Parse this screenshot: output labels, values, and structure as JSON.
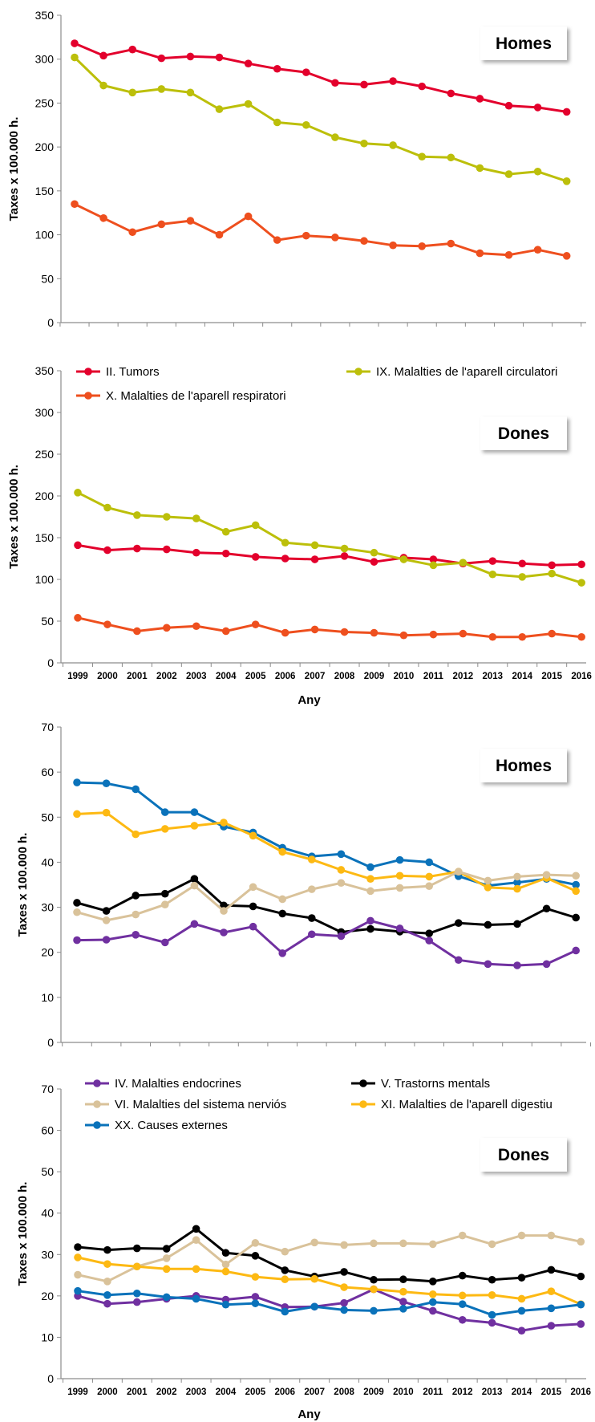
{
  "chart_data": [
    {
      "type": "line",
      "title": "Homes",
      "ylabel": "Taxes x 100.000 h.",
      "xlabel": "",
      "ylim": [
        0,
        350
      ],
      "ytick_step": 50,
      "grid": false,
      "show_legend": false,
      "show_x_tick_labels": false,
      "x": [
        "1999",
        "2000",
        "2001",
        "2002",
        "2003",
        "2004",
        "2005",
        "2006",
        "2007",
        "2008",
        "2009",
        "2010",
        "2011",
        "2012",
        "2013",
        "2014",
        "2015",
        "2016"
      ],
      "series": [
        {
          "name": "II. Tumors",
          "color": "#e3002c",
          "values": [
            318,
            304,
            311,
            301,
            303,
            302,
            295,
            289,
            285,
            273,
            271,
            275,
            269,
            261,
            255,
            247,
            245,
            240
          ]
        },
        {
          "name": "IX. Malalties de l'aparell circulatori",
          "color": "#bcbf0a",
          "values": [
            302,
            270,
            262,
            266,
            262,
            243,
            249,
            228,
            225,
            211,
            204,
            202,
            189,
            188,
            176,
            169,
            172,
            161
          ]
        },
        {
          "name": "X.  Malalties de l'aparell respiratori",
          "color": "#ee4f1e",
          "values": [
            135,
            119,
            103,
            112,
            116,
            100,
            121,
            94,
            99,
            97,
            93,
            88,
            87,
            90,
            79,
            77,
            83,
            76
          ]
        }
      ]
    },
    {
      "type": "line",
      "title": "Dones",
      "ylabel": "Taxes x 100.000 h.",
      "xlabel": "Any",
      "ylim": [
        0,
        350
      ],
      "ytick_step": 50,
      "grid": false,
      "show_legend": true,
      "legend_position": "top",
      "show_x_tick_labels": true,
      "x": [
        "1999",
        "2000",
        "2001",
        "2002",
        "2003",
        "2004",
        "2005",
        "2006",
        "2007",
        "2008",
        "2009",
        "2010",
        "2011",
        "2012",
        "2013",
        "2014",
        "2015",
        "2016"
      ],
      "series": [
        {
          "name": "II. Tumors",
          "color": "#e3002c",
          "values": [
            141,
            135,
            137,
            136,
            132,
            131,
            127,
            125,
            124,
            128,
            121,
            126,
            124,
            119,
            122,
            119,
            117,
            118
          ]
        },
        {
          "name": "IX. Malalties de l'aparell circulatori",
          "color": "#bcbf0a",
          "values": [
            204,
            186,
            177,
            175,
            173,
            157,
            165,
            144,
            141,
            137,
            132,
            124,
            117,
            120,
            106,
            103,
            107,
            96
          ]
        },
        {
          "name": "X.  Malalties de l'aparell respiratori",
          "color": "#ee4f1e",
          "values": [
            54,
            46,
            38,
            42,
            44,
            38,
            46,
            36,
            40,
            37,
            36,
            33,
            34,
            35,
            31,
            31,
            35,
            31
          ]
        }
      ]
    },
    {
      "type": "line",
      "title": "Homes",
      "ylabel": "Taxes x 100.000 h.",
      "xlabel": "",
      "ylim": [
        0,
        70
      ],
      "ytick_step": 10,
      "grid": false,
      "show_legend": false,
      "show_x_tick_labels": false,
      "x": [
        "1999",
        "2000",
        "2001",
        "2002",
        "2003",
        "2004",
        "2005",
        "2006",
        "2007",
        "2008",
        "2009",
        "2010",
        "2011",
        "2012",
        "2013",
        "2014",
        "2015",
        "2016"
      ],
      "series": [
        {
          "name": "XX. Causes externes",
          "color": "#0a72ba",
          "values": [
            57.7,
            57.5,
            56.2,
            51.1,
            51.1,
            47.9,
            46.6,
            43.2,
            41.3,
            41.8,
            38.9,
            40.5,
            40.0,
            36.9,
            34.8,
            35.5,
            36.3,
            35.0
          ]
        },
        {
          "name": "XI. Malalties de l'aparell digestiu",
          "color": "#fdb913",
          "values": [
            50.7,
            51.0,
            46.2,
            47.4,
            48.1,
            48.8,
            45.9,
            42.3,
            40.6,
            38.3,
            36.3,
            37.0,
            36.8,
            37.9,
            34.4,
            34.1,
            36.5,
            33.6
          ]
        },
        {
          "name": "V. Trastorns mentals",
          "color": "#000000",
          "values": [
            31.0,
            29.2,
            32.6,
            33.0,
            36.3,
            30.4,
            30.2,
            28.6,
            27.6,
            24.5,
            25.2,
            24.6,
            24.2,
            26.5,
            26.1,
            26.3,
            29.7,
            27.7
          ]
        },
        {
          "name": "VI. Malalties del sistema nerviós",
          "color": "#d9c29a",
          "values": [
            28.9,
            27.1,
            28.4,
            30.6,
            34.8,
            29.2,
            34.5,
            31.8,
            34.0,
            35.4,
            33.6,
            34.3,
            34.7,
            37.9,
            35.9,
            36.8,
            37.2,
            37.0
          ]
        },
        {
          "name": "IV. Malalties endocrines",
          "color": "#7030a0",
          "values": [
            22.7,
            22.8,
            23.9,
            22.2,
            26.3,
            24.4,
            25.7,
            19.8,
            24.0,
            23.6,
            27.0,
            25.3,
            22.6,
            18.3,
            17.4,
            17.1,
            17.4,
            20.4
          ]
        }
      ]
    },
    {
      "type": "line",
      "title": "Dones",
      "ylabel": "Taxes x 100.000 h.",
      "xlabel": "Any",
      "ylim": [
        0,
        70
      ],
      "ytick_step": 10,
      "grid": false,
      "show_legend": true,
      "legend_position": "top",
      "show_x_tick_labels": true,
      "x": [
        "1999",
        "2000",
        "2001",
        "2002",
        "2003",
        "2004",
        "2005",
        "2006",
        "2007",
        "2008",
        "2009",
        "2010",
        "2011",
        "2012",
        "2013",
        "2014",
        "2015",
        "2016"
      ],
      "series": [
        {
          "name": "IV. Malalties endocrines",
          "color": "#7030a0",
          "values": [
            20.0,
            18.1,
            18.5,
            19.3,
            20.0,
            19.1,
            19.8,
            17.3,
            17.4,
            18.3,
            21.6,
            18.6,
            16.4,
            14.2,
            13.5,
            11.6,
            12.8,
            13.2
          ]
        },
        {
          "name": "V. Trastorns mentals",
          "color": "#000000",
          "values": [
            31.8,
            31.1,
            31.5,
            31.4,
            36.2,
            30.4,
            29.7,
            26.2,
            24.7,
            25.8,
            23.9,
            24.0,
            23.5,
            24.9,
            23.9,
            24.4,
            26.3,
            24.7
          ]
        },
        {
          "name": "VI. Malalties del sistema nerviós",
          "color": "#d9c29a",
          "values": [
            25.1,
            23.5,
            27.1,
            29.1,
            33.5,
            27.6,
            32.8,
            30.7,
            32.9,
            32.3,
            32.7,
            32.7,
            32.5,
            34.6,
            32.5,
            34.6,
            34.6,
            33.1
          ]
        },
        {
          "name": "XI. Malalties de l'aparell digestiu",
          "color": "#fdb913",
          "values": [
            29.3,
            27.7,
            27.1,
            26.5,
            26.5,
            25.9,
            24.6,
            24.0,
            24.1,
            22.1,
            21.6,
            21.0,
            20.4,
            20.1,
            20.2,
            19.3,
            21.1,
            18.0
          ]
        },
        {
          "name": "XX. Causes externes",
          "color": "#0a72ba",
          "values": [
            21.2,
            20.2,
            20.6,
            19.7,
            19.3,
            17.9,
            18.2,
            16.2,
            17.4,
            16.6,
            16.4,
            16.9,
            18.5,
            18.0,
            15.4,
            16.4,
            17.0,
            17.9
          ]
        }
      ]
    }
  ]
}
